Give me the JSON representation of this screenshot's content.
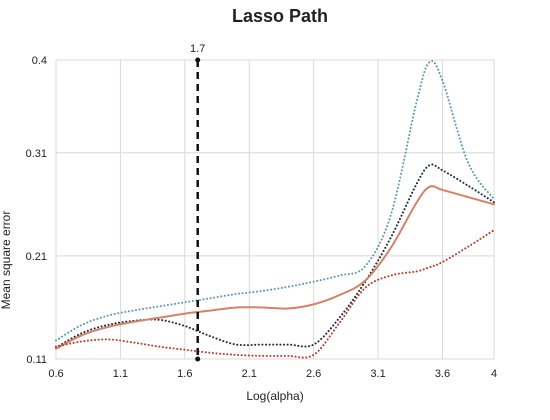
{
  "chart_data": {
    "type": "line",
    "title": "Lasso Path",
    "xlabel": "Log(alpha)",
    "ylabel": "Mean square error",
    "xlim": [
      0.6,
      4.0
    ],
    "ylim": [
      0.11,
      0.4
    ],
    "x_ticks": [
      0.6,
      1.1,
      1.6,
      2.1,
      2.6,
      3.1,
      3.6,
      4.0
    ],
    "x_tick_labels": [
      "0.6",
      "1.1",
      "1.6",
      "2.1",
      "2.6",
      "3.1",
      "3.6",
      "4"
    ],
    "y_ticks": [
      0.11,
      0.21,
      0.31,
      0.4
    ],
    "y_tick_labels": [
      "0.11",
      "0.21",
      "0.31",
      "0.4"
    ],
    "grid": true,
    "vline": {
      "x": 1.7,
      "label": "1.7",
      "color": "#111111"
    },
    "x": [
      0.6,
      0.8,
      1.0,
      1.2,
      1.4,
      1.6,
      1.8,
      2.0,
      2.2,
      2.4,
      2.6,
      2.8,
      3.0,
      3.2,
      3.4,
      3.5,
      3.6,
      3.8,
      4.0
    ],
    "series": [
      {
        "color": "#5b9bb5",
        "style": "dotted",
        "values": [
          0.128,
          0.143,
          0.152,
          0.157,
          0.161,
          0.165,
          0.169,
          0.173,
          0.176,
          0.18,
          0.185,
          0.191,
          0.2,
          0.25,
          0.36,
          0.398,
          0.38,
          0.3,
          0.265
        ]
      },
      {
        "color": "#1e2d3a",
        "style": "dotted",
        "values": [
          0.121,
          0.135,
          0.143,
          0.147,
          0.148,
          0.142,
          0.132,
          0.124,
          0.124,
          0.124,
          0.124,
          0.15,
          0.185,
          0.228,
          0.28,
          0.298,
          0.293,
          0.278,
          0.262
        ]
      },
      {
        "color": "#d4836a",
        "style": "solid",
        "values": [
          0.12,
          0.133,
          0.141,
          0.146,
          0.15,
          0.154,
          0.157,
          0.16,
          0.16,
          0.159,
          0.163,
          0.172,
          0.186,
          0.218,
          0.262,
          0.277,
          0.274,
          0.267,
          0.26
        ]
      },
      {
        "color": "#c0392b",
        "style": "dotted",
        "values": [
          0.122,
          0.127,
          0.129,
          0.126,
          0.122,
          0.119,
          0.116,
          0.114,
          0.113,
          0.113,
          0.114,
          0.145,
          0.179,
          0.191,
          0.195,
          0.199,
          0.204,
          0.219,
          0.235
        ]
      }
    ]
  }
}
